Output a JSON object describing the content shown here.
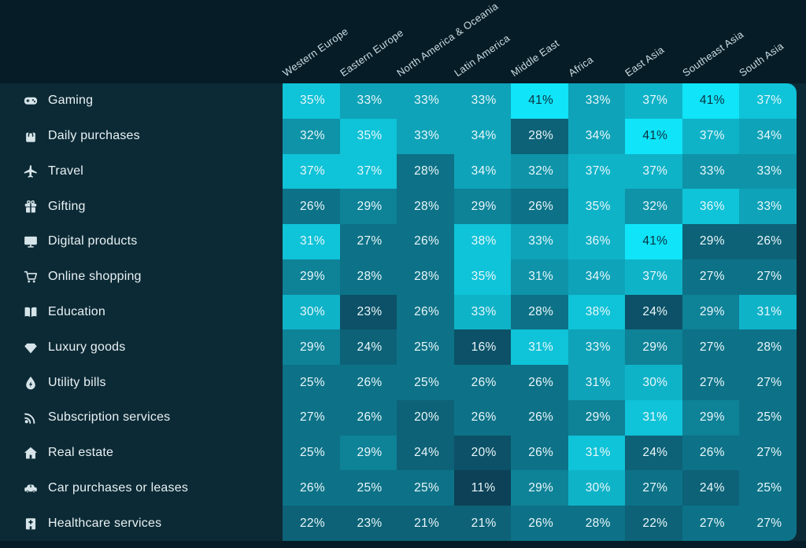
{
  "chart_data": {
    "type": "heatmap",
    "unit": "%",
    "legend": "none",
    "columns": [
      "Western Europe",
      "Eastern Europe",
      "North America & Oceania",
      "Latin America",
      "Middle East",
      "Africa",
      "East Asia",
      "Southeast Asia",
      "South Asia"
    ],
    "rows": [
      {
        "label": "Gaming",
        "icon": "gamepad-icon",
        "values": [
          35,
          33,
          33,
          33,
          41,
          33,
          37,
          41,
          37
        ],
        "shades": [
          8,
          6,
          6,
          6,
          10,
          6,
          7,
          10,
          8
        ]
      },
      {
        "label": "Daily purchases",
        "icon": "shopping-bag-icon",
        "values": [
          32,
          35,
          33,
          34,
          28,
          34,
          41,
          37,
          34
        ],
        "shades": [
          5,
          8,
          6,
          6,
          2,
          6,
          10,
          7,
          6
        ]
      },
      {
        "label": "Travel",
        "icon": "airplane-icon",
        "values": [
          37,
          37,
          28,
          34,
          32,
          37,
          37,
          33,
          33
        ],
        "shades": [
          8,
          8,
          3,
          6,
          5,
          7,
          7,
          5,
          5
        ]
      },
      {
        "label": "Gifting",
        "icon": "gift-icon",
        "values": [
          26,
          29,
          28,
          29,
          26,
          35,
          32,
          36,
          33
        ],
        "shades": [
          3,
          4,
          3,
          4,
          3,
          7,
          5,
          8,
          6
        ]
      },
      {
        "label": "Digital products",
        "icon": "monitor-icon",
        "values": [
          31,
          27,
          26,
          38,
          33,
          36,
          41,
          29,
          26
        ],
        "shades": [
          8,
          3,
          3,
          8,
          6,
          7,
          10,
          2,
          2
        ]
      },
      {
        "label": "Online shopping",
        "icon": "cart-icon",
        "values": [
          29,
          28,
          28,
          35,
          31,
          34,
          37,
          27,
          27
        ],
        "shades": [
          4,
          3,
          3,
          8,
          5,
          6,
          7,
          3,
          3
        ]
      },
      {
        "label": "Education",
        "icon": "book-icon",
        "values": [
          30,
          23,
          26,
          33,
          28,
          38,
          24,
          29,
          31
        ],
        "shades": [
          7,
          1,
          3,
          7,
          3,
          8,
          1,
          4,
          7
        ]
      },
      {
        "label": "Luxury goods",
        "icon": "gem-icon",
        "values": [
          29,
          24,
          25,
          16,
          31,
          33,
          29,
          27,
          28
        ],
        "shades": [
          4,
          2,
          3,
          1,
          8,
          6,
          4,
          3,
          3
        ]
      },
      {
        "label": "Utility bills",
        "icon": "droplet-icon",
        "values": [
          25,
          26,
          25,
          26,
          26,
          31,
          30,
          27,
          27
        ],
        "shades": [
          3,
          3,
          3,
          3,
          3,
          6,
          7,
          3,
          3
        ]
      },
      {
        "label": "Subscription services",
        "icon": "rss-icon",
        "values": [
          27,
          26,
          20,
          26,
          26,
          29,
          31,
          29,
          25
        ],
        "shades": [
          3,
          3,
          2,
          3,
          3,
          4,
          8,
          4,
          3
        ]
      },
      {
        "label": "Real estate",
        "icon": "house-icon",
        "values": [
          25,
          29,
          24,
          20,
          26,
          31,
          24,
          26,
          27
        ],
        "shades": [
          3,
          4,
          2,
          1,
          3,
          8,
          2,
          3,
          3
        ]
      },
      {
        "label": "Car purchases or leases",
        "icon": "car-icon",
        "values": [
          26,
          25,
          25,
          11,
          29,
          30,
          27,
          24,
          25
        ],
        "shades": [
          3,
          3,
          3,
          0,
          4,
          7,
          3,
          2,
          3
        ]
      },
      {
        "label": "Healthcare services",
        "icon": "hospital-icon",
        "values": [
          22,
          23,
          21,
          21,
          26,
          28,
          22,
          27,
          27
        ],
        "shades": [
          2,
          2,
          2,
          2,
          3,
          3,
          2,
          3,
          3
        ]
      }
    ],
    "palette": {
      "page_background": "#061C26",
      "panel_background": "#0C2A35",
      "cell_low": "#0C4157",
      "cell_high": "#10E4F8",
      "light_text": "#EAF7FA",
      "dark_text": "#0A3140",
      "header_text": "#CBDCE2",
      "row_label_text": "#E8F1F4"
    }
  }
}
